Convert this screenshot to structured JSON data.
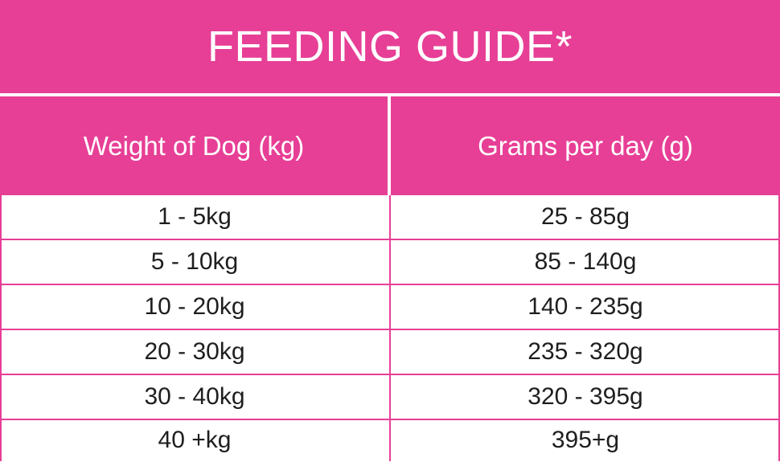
{
  "title": "FEEDING GUIDE*",
  "colors": {
    "accent": "#e73f96",
    "header_text": "#ffffff",
    "body_text": "#1e1e1e",
    "background": "#ffffff"
  },
  "table": {
    "headers": [
      "Weight of Dog (kg)",
      "Grams per day (g)"
    ],
    "rows": [
      [
        "1 - 5kg",
        "25 - 85g"
      ],
      [
        "5 - 10kg",
        "85 - 140g"
      ],
      [
        "10 - 20kg",
        "140 - 235g"
      ],
      [
        "20 - 30kg",
        "235 - 320g"
      ],
      [
        "30 - 40kg",
        "320 - 395g"
      ],
      [
        "40 +kg",
        "395+g"
      ]
    ]
  }
}
